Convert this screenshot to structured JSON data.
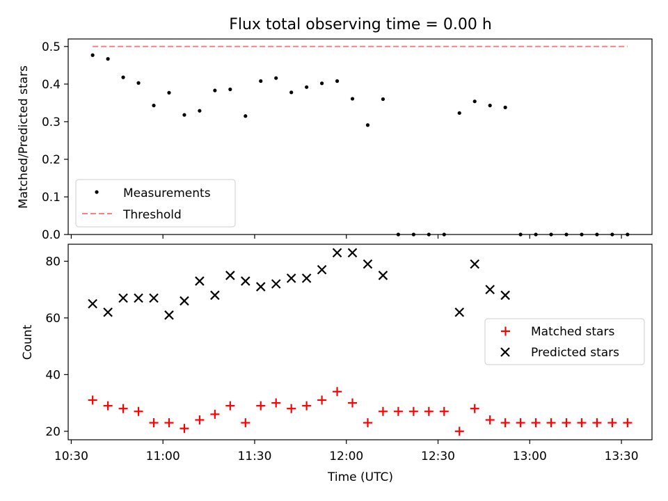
{
  "figure": {
    "title": "Flux total observing time = 0.00 h",
    "xlabel": "Time (UTC)"
  },
  "chart_data": [
    {
      "type": "scatter",
      "ylabel": "Matched/Predicted stars",
      "ylim": [
        0,
        0.52
      ],
      "yticks": [
        "0.0",
        "0.1",
        "0.2",
        "0.3",
        "0.4",
        "0.5"
      ],
      "xlim": [
        "10:29",
        "13:40"
      ],
      "legend_position": "lower-left",
      "series": [
        {
          "name": "Measurements",
          "marker": "dot",
          "color": "#000000",
          "x": [
            "10:37",
            "10:42",
            "10:47",
            "10:52",
            "10:57",
            "11:02",
            "11:07",
            "11:12",
            "11:17",
            "11:22",
            "11:27",
            "11:32",
            "11:37",
            "11:42",
            "11:47",
            "11:52",
            "11:57",
            "12:02",
            "12:07",
            "12:12",
            "12:17",
            "12:22",
            "12:27",
            "12:32",
            "12:37",
            "12:42",
            "12:47",
            "12:52",
            "12:57",
            "13:02",
            "13:07",
            "13:12",
            "13:17",
            "13:22",
            "13:27",
            "13:32"
          ],
          "y": [
            0.477,
            0.467,
            0.418,
            0.403,
            0.343,
            0.377,
            0.318,
            0.329,
            0.383,
            0.386,
            0.315,
            0.408,
            0.416,
            0.378,
            0.392,
            0.402,
            0.408,
            0.361,
            0.291,
            0.36,
            0,
            0,
            0,
            0,
            0.323,
            0.354,
            0.343,
            0.338,
            0,
            0,
            0,
            0,
            0,
            0,
            0,
            0
          ]
        },
        {
          "name": "Threshold",
          "style": "dashed",
          "color": "#ff7f7f",
          "x": [
            "10:37",
            "13:32"
          ],
          "y": [
            0.5,
            0.5
          ]
        }
      ]
    },
    {
      "type": "scatter",
      "ylabel": "Count",
      "ylim": [
        17,
        86
      ],
      "yticks": [
        "20",
        "40",
        "60",
        "80"
      ],
      "xlim": [
        "10:29",
        "13:40"
      ],
      "xticks": [
        "10:30",
        "11:00",
        "11:30",
        "12:00",
        "12:30",
        "13:00",
        "13:30"
      ],
      "legend_position": "center-right",
      "series": [
        {
          "name": "Matched stars",
          "marker": "plus",
          "color": "#ff0000",
          "x": [
            "10:37",
            "10:42",
            "10:47",
            "10:52",
            "10:57",
            "11:02",
            "11:07",
            "11:12",
            "11:17",
            "11:22",
            "11:27",
            "11:32",
            "11:37",
            "11:42",
            "11:47",
            "11:52",
            "11:57",
            "12:02",
            "12:07",
            "12:12",
            "12:17",
            "12:22",
            "12:27",
            "12:32",
            "12:37",
            "12:42",
            "12:47",
            "12:52",
            "12:57",
            "13:02",
            "13:07",
            "13:12",
            "13:17",
            "13:22",
            "13:27",
            "13:32"
          ],
          "y": [
            31,
            29,
            28,
            27,
            23,
            23,
            21,
            24,
            26,
            29,
            23,
            29,
            30,
            28,
            29,
            31,
            34,
            30,
            23,
            27,
            27,
            27,
            27,
            27,
            20,
            28,
            24,
            23,
            23,
            23,
            23,
            23,
            23,
            23,
            23,
            23
          ]
        },
        {
          "name": "Predicted stars",
          "marker": "x",
          "color": "#000000",
          "x": [
            "10:37",
            "10:42",
            "10:47",
            "10:52",
            "10:57",
            "11:02",
            "11:07",
            "11:12",
            "11:17",
            "11:22",
            "11:27",
            "11:32",
            "11:37",
            "11:42",
            "11:47",
            "11:52",
            "11:57",
            "12:02",
            "12:07",
            "12:12",
            "12:37",
            "12:42",
            "12:47",
            "12:52"
          ],
          "y": [
            65,
            62,
            67,
            67,
            67,
            61,
            66,
            73,
            68,
            75,
            73,
            71,
            72,
            74,
            74,
            77,
            83,
            83,
            79,
            75,
            62,
            79,
            70,
            68
          ]
        }
      ]
    }
  ]
}
